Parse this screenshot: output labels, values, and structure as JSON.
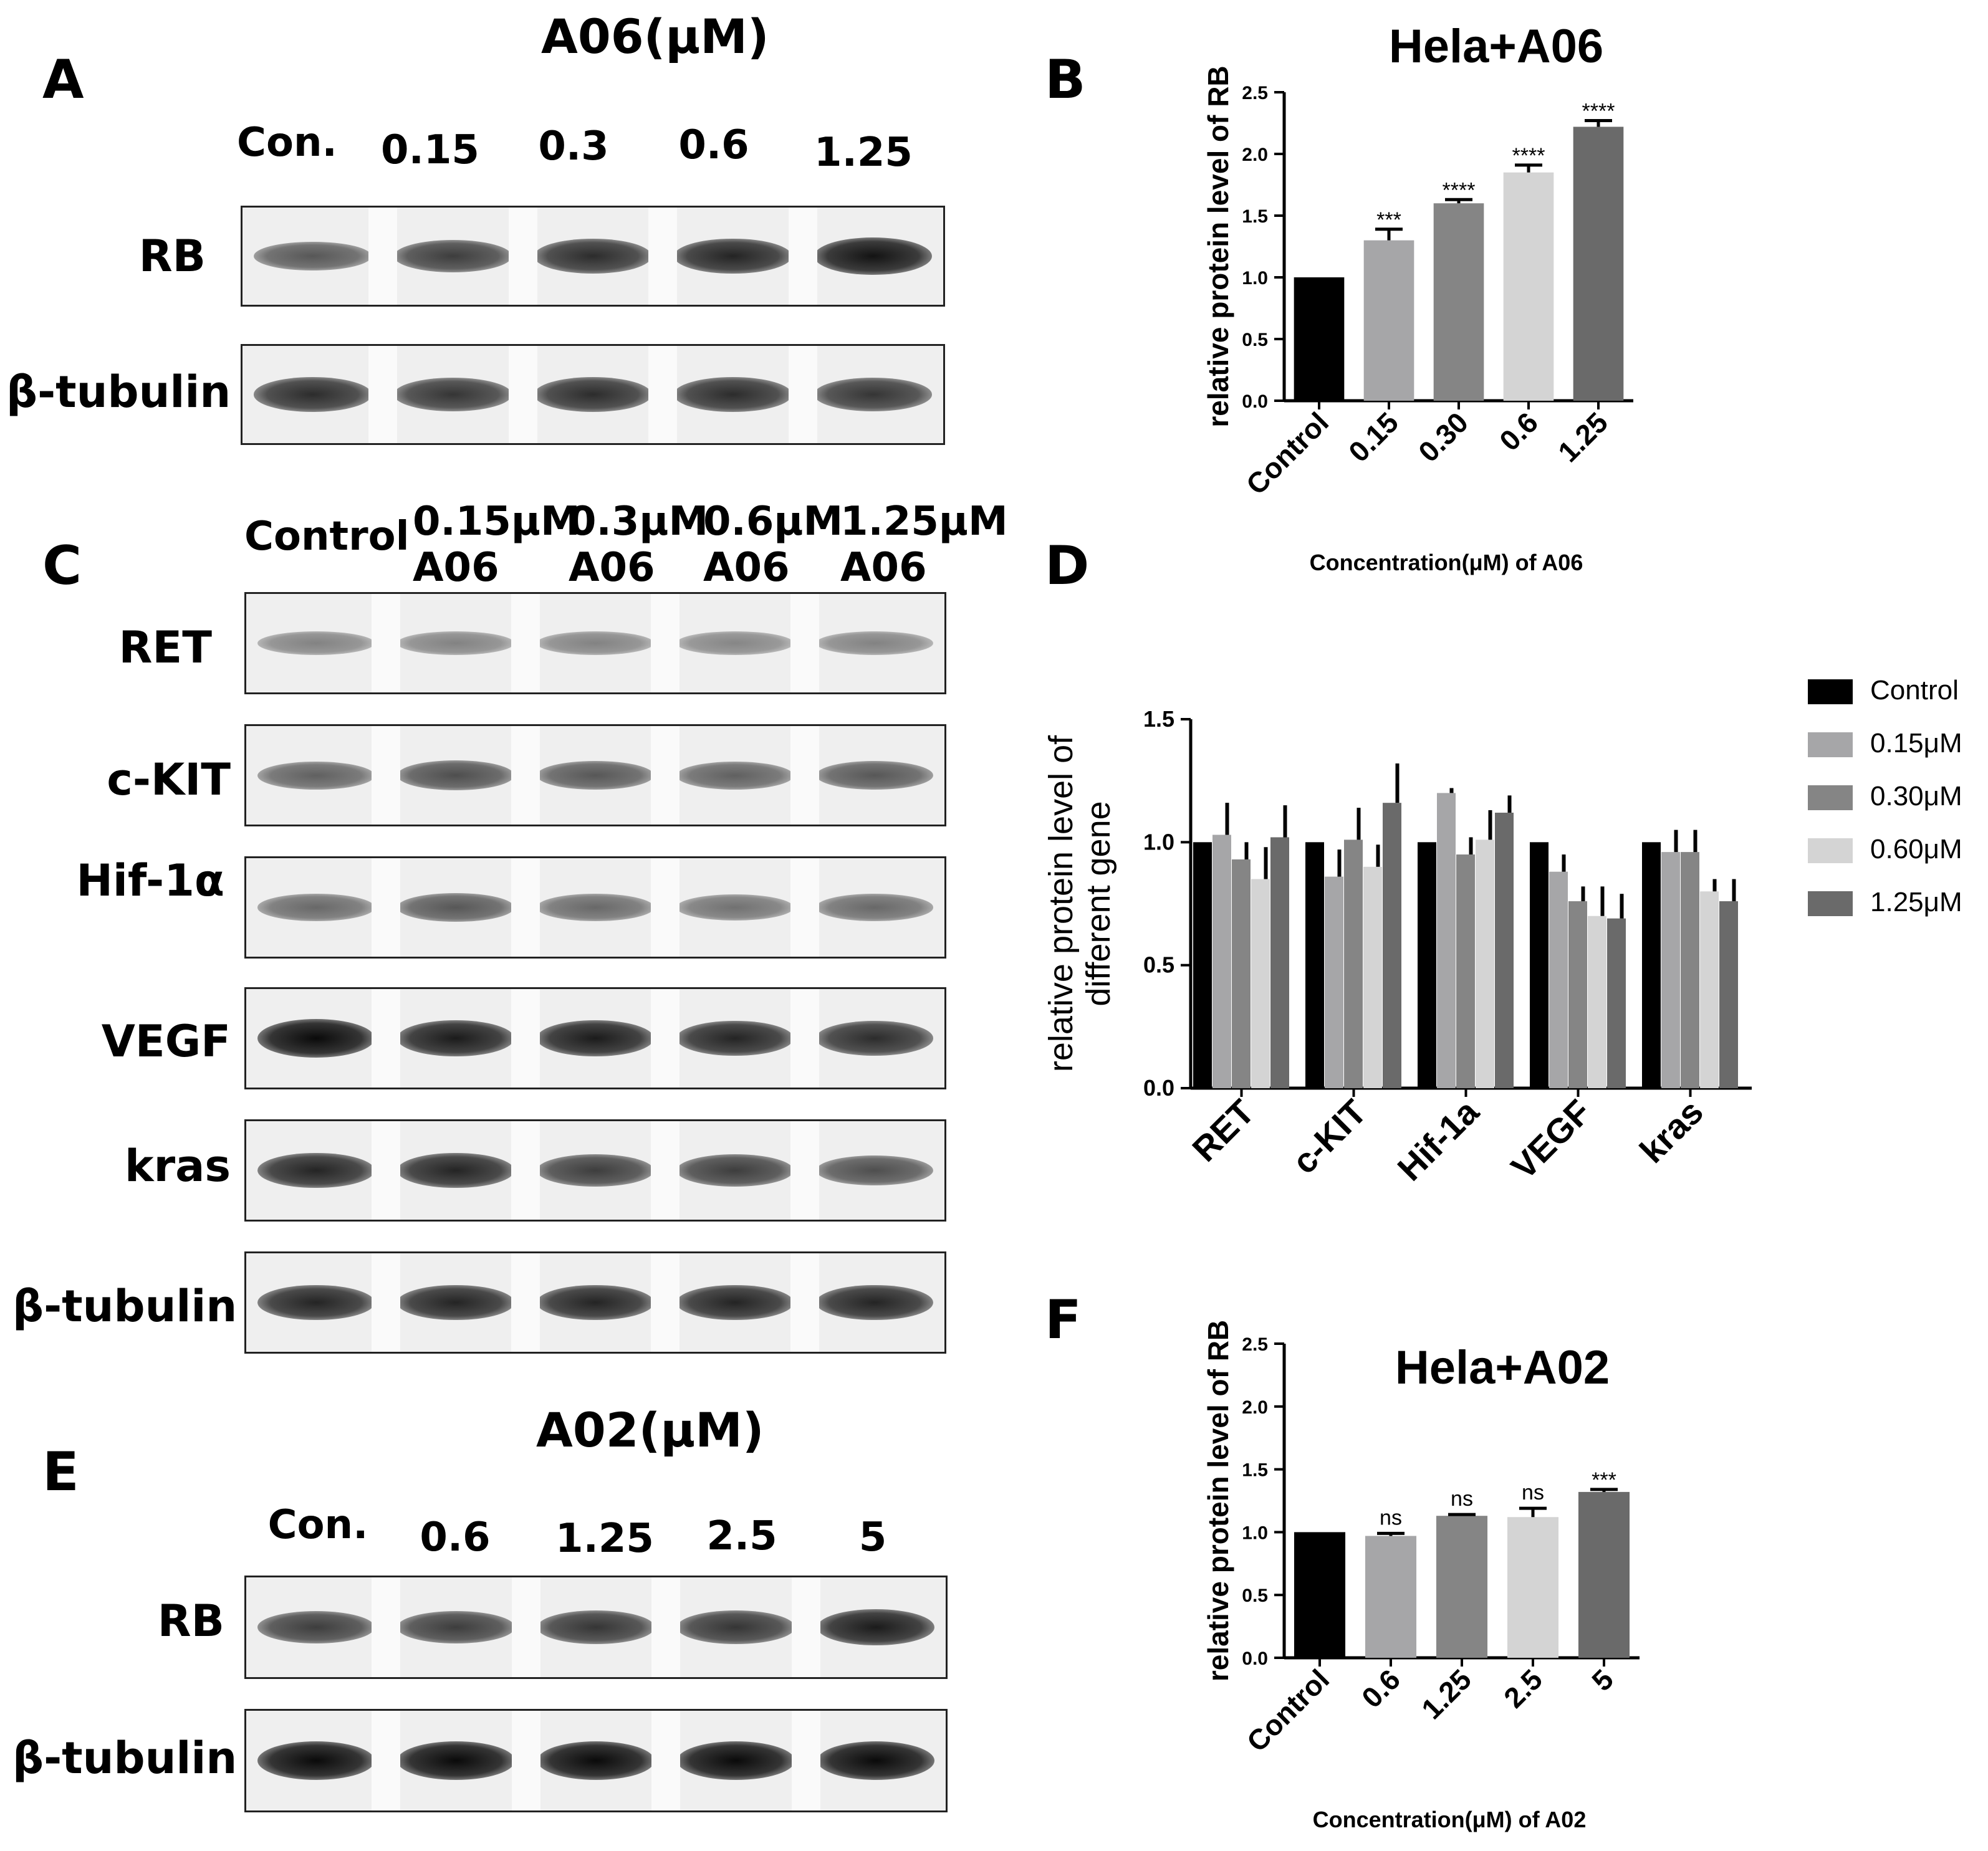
{
  "panels": {
    "A": {
      "letter": "A",
      "title": "A06(μM)",
      "lanes": [
        "Con.",
        "0.15",
        "0.3",
        "0.6",
        "1.25"
      ],
      "rows": [
        "RB",
        "β-tubulin"
      ],
      "band_intensity": [
        [
          0.55,
          0.7,
          0.8,
          0.85,
          0.95
        ],
        [
          0.8,
          0.75,
          0.8,
          0.8,
          0.75
        ]
      ]
    },
    "C": {
      "letter": "C",
      "lanes": [
        {
          "line1": "Control",
          "line2": ""
        },
        {
          "line1": "0.15μM",
          "line2": "A06"
        },
        {
          "line1": "0.3μM",
          "line2": "A06"
        },
        {
          "line1": "0.6μM",
          "line2": "A06"
        },
        {
          "line1": "1.25μM",
          "line2": "A06"
        }
      ],
      "rows": [
        "RET",
        "c-KIT",
        "Hif-1α",
        "VEGF",
        "kras",
        "β-tubulin"
      ],
      "band_intensity": [
        [
          0.3,
          0.3,
          0.3,
          0.28,
          0.3
        ],
        [
          0.5,
          0.6,
          0.55,
          0.5,
          0.55
        ],
        [
          0.45,
          0.55,
          0.45,
          0.4,
          0.45
        ],
        [
          1.0,
          0.9,
          0.9,
          0.85,
          0.8
        ],
        [
          0.85,
          0.85,
          0.7,
          0.7,
          0.6
        ],
        [
          0.85,
          0.85,
          0.85,
          0.85,
          0.85
        ]
      ]
    },
    "E": {
      "letter": "E",
      "title": "A02(μM)",
      "lanes": [
        "Con.",
        "0.6",
        "1.25",
        "2.5",
        "5"
      ],
      "rows": [
        "RB",
        "β-tubulin"
      ],
      "band_intensity": [
        [
          0.7,
          0.7,
          0.75,
          0.75,
          0.9
        ],
        [
          1.0,
          1.0,
          1.0,
          1.0,
          1.0
        ]
      ]
    },
    "B": {
      "letter": "B"
    },
    "D": {
      "letter": "D"
    },
    "F": {
      "letter": "F"
    }
  },
  "chart_data": [
    {
      "id": "B",
      "type": "bar",
      "title": "Hela+A06",
      "xlabel": "Concentration(μM) of A06",
      "ylabel": "relative protein level of RB",
      "categories": [
        "Control",
        "0.15",
        "0.30",
        "0.6",
        "1.25"
      ],
      "values": [
        1.0,
        1.3,
        1.6,
        1.85,
        2.22
      ],
      "errors": [
        0.0,
        0.09,
        0.03,
        0.06,
        0.05
      ],
      "significance": [
        "",
        "***",
        "****",
        "****",
        "****"
      ],
      "colors": [
        "#000000",
        "#a6a6a8",
        "#858585",
        "#d4d4d4",
        "#6a6a6a"
      ],
      "ylim": [
        0,
        2.5
      ],
      "yticks": [
        "0.0",
        "0.5",
        "1.0",
        "1.5",
        "2.0",
        "2.5"
      ],
      "grid": false
    },
    {
      "id": "D",
      "type": "bar",
      "title": "",
      "xlabel": "",
      "ylabel": "relative protein level of different gene",
      "ylabel_lines": [
        "relative protein level of",
        "different gene"
      ],
      "categories": [
        "RET",
        "c-KIT",
        "Hif-1a",
        "VEGF",
        "kras"
      ],
      "series": [
        {
          "name": "Control",
          "values": [
            1.0,
            1.0,
            1.0,
            1.0,
            1.0
          ],
          "errors": [
            0,
            0,
            0,
            0,
            0
          ]
        },
        {
          "name": "0.15μM",
          "values": [
            1.03,
            0.86,
            1.2,
            0.88,
            0.96
          ],
          "errors": [
            0.13,
            0.11,
            0.02,
            0.07,
            0.09
          ]
        },
        {
          "name": "0.30μM",
          "values": [
            0.93,
            1.01,
            0.95,
            0.76,
            0.96
          ],
          "errors": [
            0.07,
            0.13,
            0.07,
            0.06,
            0.09
          ]
        },
        {
          "name": "0.60μM",
          "values": [
            0.85,
            0.9,
            1.01,
            0.7,
            0.8
          ],
          "errors": [
            0.13,
            0.09,
            0.12,
            0.12,
            0.05
          ]
        },
        {
          "name": "1.25μM",
          "values": [
            1.02,
            1.16,
            1.12,
            0.69,
            0.76
          ],
          "errors": [
            0.13,
            0.16,
            0.07,
            0.1,
            0.09
          ]
        }
      ],
      "colors": [
        "#000000",
        "#a6a6a8",
        "#858585",
        "#d4d4d4",
        "#6a6a6a"
      ],
      "ylim": [
        0,
        1.5
      ],
      "yticks": [
        "0.0",
        "0.5",
        "1.0",
        "1.5"
      ],
      "legend": "right",
      "grid": false
    },
    {
      "id": "F",
      "type": "bar",
      "title": "Hela+A02",
      "xlabel": "Concentration(μM) of A02",
      "ylabel": "relative protein level of RB",
      "categories": [
        "Control",
        "0.6",
        "1.25",
        "2.5",
        "5"
      ],
      "values": [
        1.0,
        0.97,
        1.13,
        1.12,
        1.32
      ],
      "errors": [
        0.0,
        0.02,
        0.01,
        0.07,
        0.02
      ],
      "significance": [
        "",
        "ns",
        "ns",
        "ns",
        "***"
      ],
      "colors": [
        "#000000",
        "#a6a6a8",
        "#858585",
        "#d4d4d4",
        "#6a6a6a"
      ],
      "ylim": [
        0,
        2.5
      ],
      "yticks": [
        "0.0",
        "0.5",
        "1.0",
        "1.5",
        "2.0",
        "2.5"
      ],
      "grid": false
    }
  ]
}
